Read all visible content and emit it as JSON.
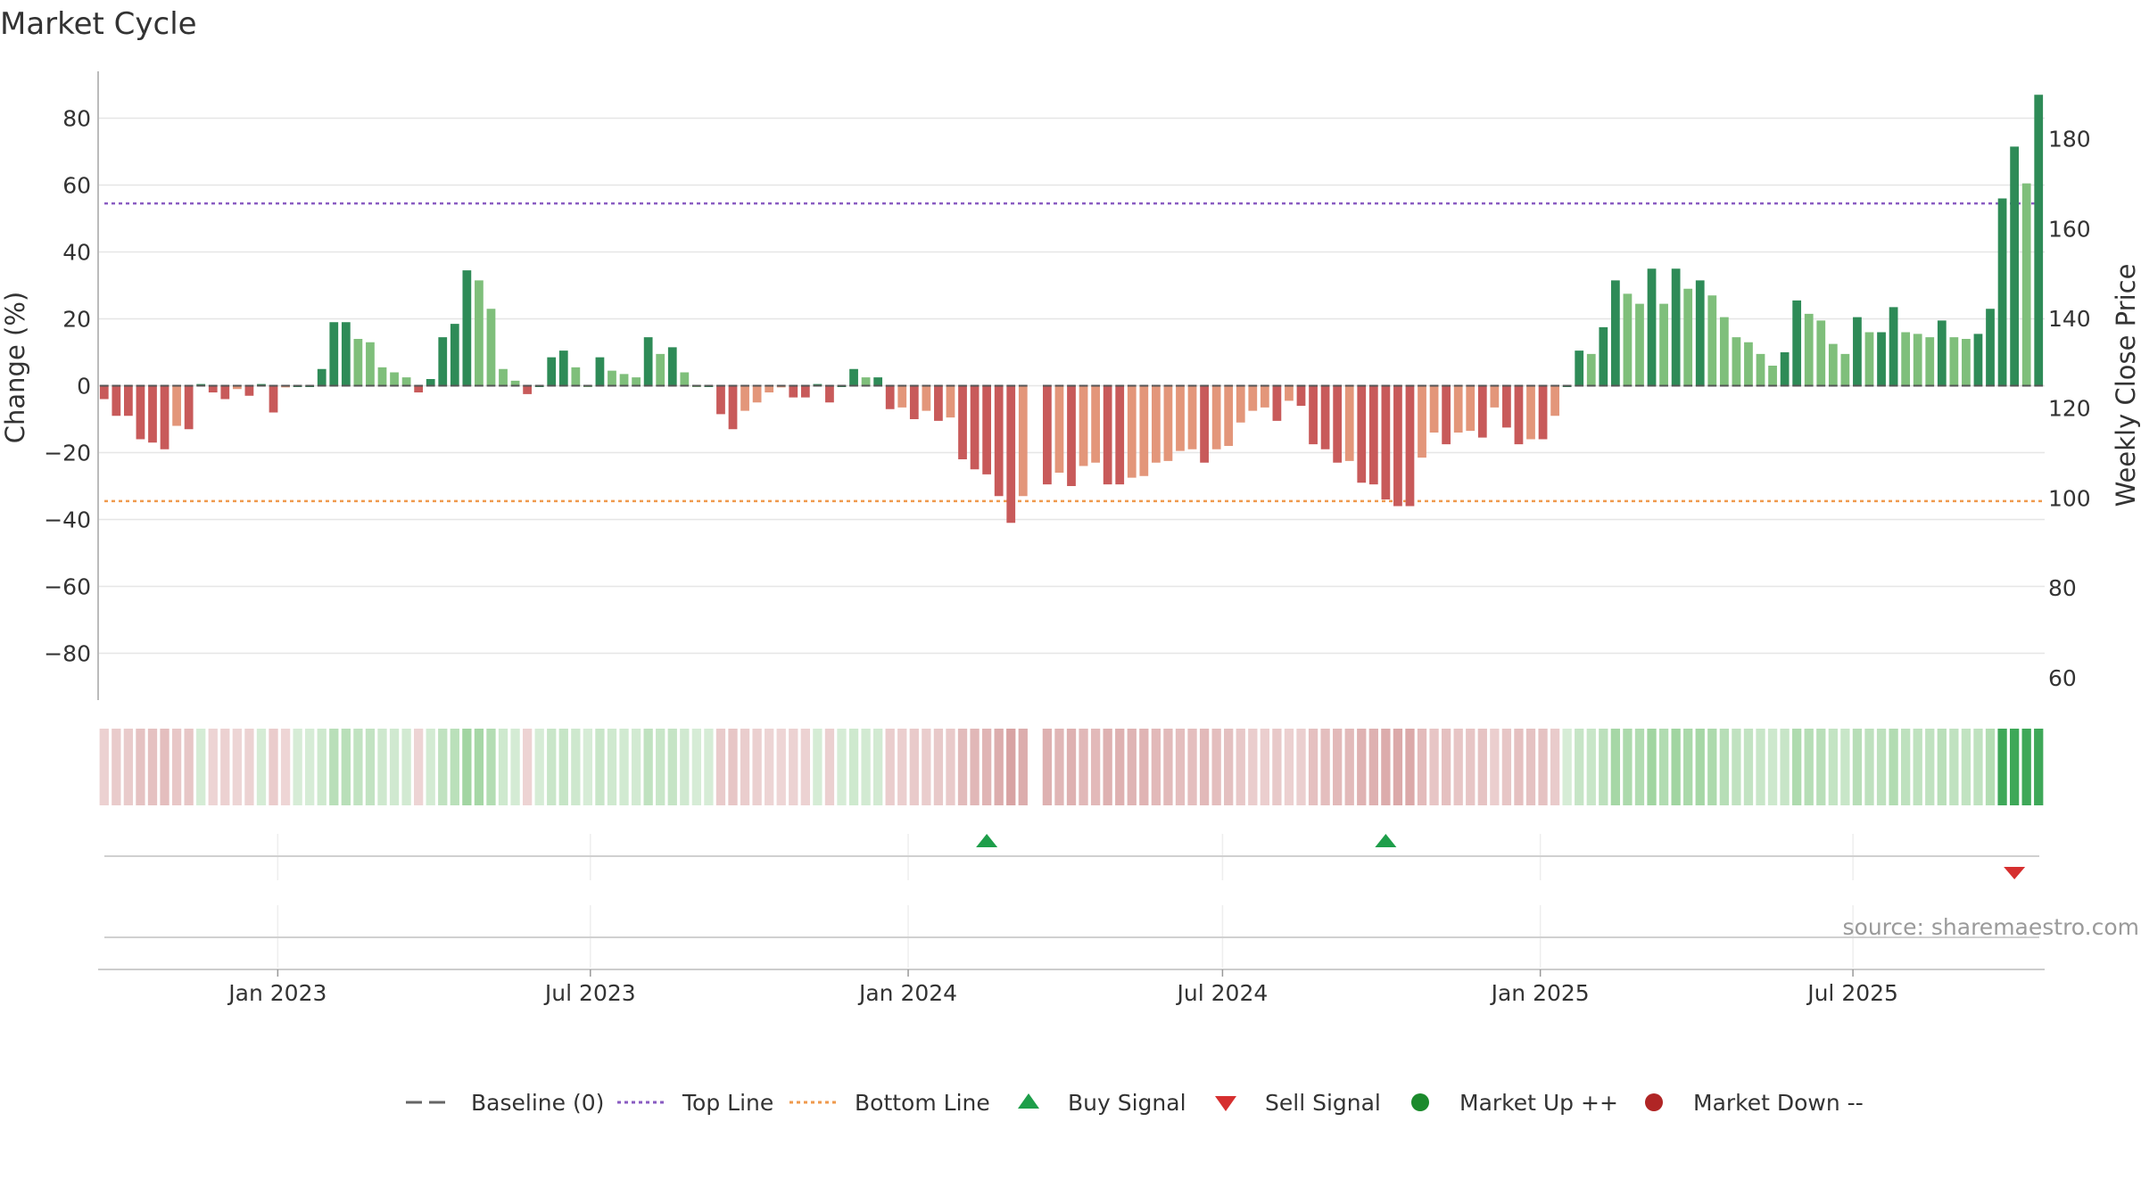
{
  "chart_data": {
    "type": "bar",
    "title": "Market Cycle",
    "ylabel": "Change (%)",
    "y2label": "Weekly Close Price",
    "ylim": [
      -94,
      94
    ],
    "y_ticks": [
      80,
      60,
      40,
      20,
      0,
      -20,
      -40,
      -60,
      -80
    ],
    "y_tick_labels": [
      "80",
      "60",
      "40",
      "20",
      "0",
      "−20",
      "−40",
      "−60",
      "−80"
    ],
    "y2lim": [
      55,
      195
    ],
    "y2_ticks": [
      180,
      160,
      140,
      120,
      100,
      80,
      60
    ],
    "y2_tick_labels": [
      "180",
      "160",
      "140",
      "120",
      "100",
      "80",
      "60"
    ],
    "x_start": "2022-09-19",
    "x_end": "2025-10-20",
    "x_ticks": [
      "2023-01-01",
      "2023-07-01",
      "2024-01-01",
      "2024-07-01",
      "2025-01-01",
      "2025-07-01"
    ],
    "x_tick_labels": [
      "Jan 2023",
      "Jul 2023",
      "Jan 2024",
      "Jul 2024",
      "Jan 2025",
      "Jul 2025"
    ],
    "top_line": 54.5,
    "bottom_line": -34.5,
    "baseline": 0,
    "grid": true,
    "series": [
      {
        "role": "bars",
        "start": "2022-09-19",
        "interval_days": 7,
        "values": [
          -4,
          -9,
          -9,
          -16,
          -17,
          -19,
          -12,
          -13,
          0.5,
          -2,
          -4,
          -1,
          -3,
          0.5,
          -8,
          -0.5,
          0,
          0,
          5,
          19,
          19,
          14,
          13,
          5.5,
          4,
          2.5,
          -2,
          2,
          14.5,
          18.5,
          34.5,
          31.5,
          23,
          5,
          1.5,
          -2.5,
          0,
          8.5,
          10.5,
          5.5,
          0,
          8.5,
          4.5,
          3.5,
          2.5,
          14.5,
          9.5,
          11.5,
          4,
          0,
          0,
          -8.5,
          -13,
          -7.5,
          -5,
          -2,
          -0.5,
          -3.5,
          -3.5,
          0.5,
          -5,
          0,
          5,
          2.5,
          2.5,
          -7,
          -6.5,
          -10,
          -7.5,
          -10.5,
          -9.5,
          -22,
          -25,
          -26.5,
          -33,
          -41,
          -33,
          null,
          -29.5,
          -26,
          -30,
          -24,
          -23,
          -29.5,
          -29.5,
          -27.5,
          -27,
          -23,
          -22.5,
          -19.5,
          -19,
          -23,
          -19,
          -18,
          -11,
          -7.5,
          -6.5,
          -10.5,
          -4.5,
          -6,
          -17.5,
          -19,
          -23,
          -22.5,
          -29,
          -29.5,
          -34,
          -36,
          -36,
          -21.5,
          -14,
          -17.5,
          -14,
          -13.5,
          -15.5,
          -6.5,
          -12.5,
          -17.5,
          -16,
          -16,
          -9,
          0,
          10.5,
          9.5,
          17.5,
          31.5,
          27.5,
          24.5,
          35,
          24.5,
          35,
          29,
          31.5,
          27,
          20.5,
          14.5,
          13,
          9.5,
          6,
          10,
          25.5,
          21.5,
          19.5,
          12.5,
          9.5,
          20.5,
          16,
          16,
          23.5,
          16,
          15.5,
          14.5,
          19.5,
          14.5,
          14,
          15.5,
          23,
          56,
          71.5,
          60.5,
          87
        ]
      },
      {
        "role": "heat_strip",
        "note": "weekly regime strip below bars (pale red = down, pale/strong green = up)"
      }
    ],
    "signals": {
      "buy": [
        "2024-02-12",
        "2024-09-30"
      ],
      "sell": [
        "2025-09-29"
      ]
    },
    "source_text": "source: sharemaestro.com",
    "legend": [
      {
        "label": "Baseline (0)",
        "kind": "dash",
        "color": "#666666"
      },
      {
        "label": "Top Line",
        "kind": "dot",
        "color": "#8a5cc2"
      },
      {
        "label": "Bottom Line",
        "kind": "dot",
        "color": "#ef9a4d"
      },
      {
        "label": "Buy Signal",
        "kind": "tri-up",
        "color": "#1e9e4a"
      },
      {
        "label": "Sell Signal",
        "kind": "tri-down",
        "color": "#d62f2f"
      },
      {
        "label": "Market Up ++",
        "kind": "circle",
        "color": "#1b8a2c"
      },
      {
        "label": "Market Down --",
        "kind": "circle",
        "color": "#b02525"
      }
    ],
    "colors": {
      "up_strong": "#2e8b57",
      "up_light": "#7fbf7b",
      "down_strong": "#c85a5a",
      "down_light": "#e3967a",
      "top_line": "#8a5cc2",
      "bottom_line": "#ef9a4d",
      "grid": "#e6e6e6"
    }
  }
}
